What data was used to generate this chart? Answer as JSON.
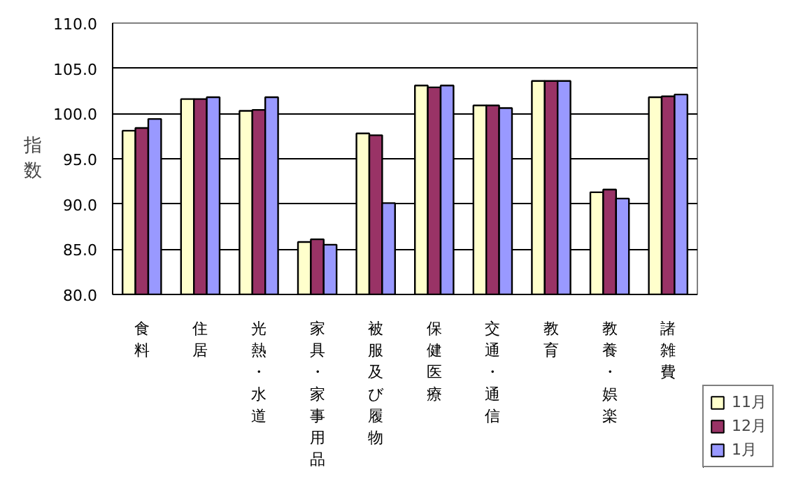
{
  "chart_data": {
    "type": "bar",
    "ylabel": "指数",
    "categories": [
      "食料",
      "住居",
      "光熱・水道",
      "家具・家事用品",
      "被服及び履物",
      "保健医療",
      "交通・通信",
      "教育",
      "教養・娯楽",
      "諸雑費"
    ],
    "series": [
      {
        "name": "11月",
        "color": "#ffffcc",
        "values": [
          98.1,
          101.6,
          100.3,
          85.8,
          97.8,
          103.1,
          100.9,
          103.6,
          91.3,
          101.8
        ]
      },
      {
        "name": "12月",
        "color": "#993366",
        "values": [
          98.4,
          101.6,
          100.4,
          86.1,
          97.6,
          102.9,
          100.9,
          103.6,
          91.6,
          101.9
        ]
      },
      {
        "name": "1月",
        "color": "#9999ff",
        "values": [
          99.4,
          101.8,
          101.8,
          85.5,
          90.1,
          103.1,
          100.6,
          103.6,
          90.6,
          102.1
        ]
      }
    ],
    "ylim": [
      80,
      110
    ],
    "yticks": [
      {
        "value": 80,
        "label": "80.0"
      },
      {
        "value": 85,
        "label": "85.0"
      },
      {
        "value": 90,
        "label": "90.0"
      },
      {
        "value": 95,
        "label": "95.0"
      },
      {
        "value": 100,
        "label": "100.0"
      },
      {
        "value": 105,
        "label": "105.0"
      },
      {
        "value": 110,
        "label": "110.0"
      }
    ],
    "grid": "y",
    "legend": "bottom right"
  }
}
